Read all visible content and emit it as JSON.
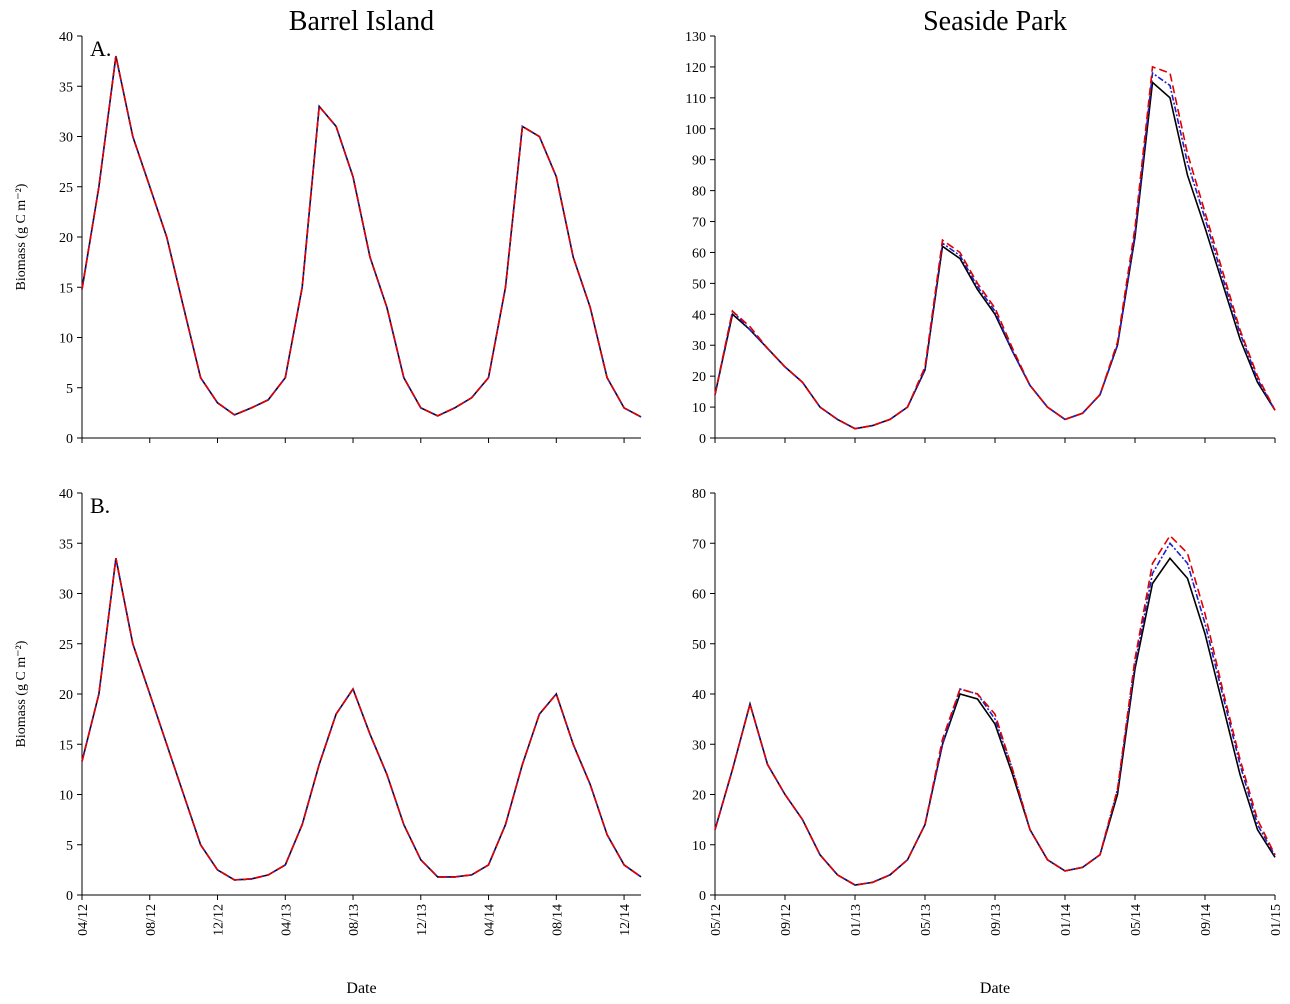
{
  "chart_data": [
    {
      "type": "line",
      "title": "Barrel Island",
      "annotation": "A.",
      "ylabel": "Biomass (g C m⁻²)",
      "x": [
        "04/12",
        "05/12",
        "06/12",
        "07/12",
        "08/12",
        "09/12",
        "10/12",
        "11/12",
        "12/12",
        "01/13",
        "02/13",
        "03/13",
        "04/13",
        "05/13",
        "06/13",
        "07/13",
        "08/13",
        "09/13",
        "10/13",
        "11/13",
        "12/13",
        "01/14",
        "02/14",
        "03/14",
        "04/14",
        "05/14",
        "06/14",
        "07/14",
        "08/14",
        "09/14",
        "10/14",
        "11/14",
        "12/14",
        "01/15"
      ],
      "series": [
        {
          "color": "#000000",
          "line_style": "solid",
          "values": [
            14.8,
            25,
            38,
            30,
            25,
            20,
            13,
            6,
            3.5,
            2.3,
            3,
            3.8,
            6,
            15,
            33,
            31,
            26,
            18,
            13,
            6,
            3,
            2.2,
            3,
            4,
            6,
            15,
            31,
            30,
            26,
            18,
            13,
            6,
            3,
            2.1
          ]
        },
        {
          "color": "#1f1fcc",
          "line_style": "dashdot",
          "values": [
            14.8,
            25,
            38,
            30,
            25,
            20,
            13,
            6,
            3.5,
            2.3,
            3,
            3.8,
            6,
            15,
            33,
            31,
            26,
            18,
            13,
            6,
            3,
            2.2,
            3,
            4,
            6,
            15,
            31,
            30,
            26,
            18,
            13,
            6,
            3,
            2.1
          ]
        },
        {
          "color": "#e00000",
          "line_style": "dashed",
          "values": [
            14.8,
            25,
            38,
            30,
            25,
            20,
            13,
            6,
            3.5,
            2.3,
            3,
            3.8,
            6,
            15,
            33,
            31,
            26,
            18,
            13,
            6,
            3,
            2.2,
            3,
            4,
            6,
            15,
            31,
            30,
            26,
            18,
            13,
            6,
            3,
            2.1
          ]
        }
      ],
      "xlim": [
        "04/12",
        "01/15"
      ],
      "ylim": [
        0,
        40
      ],
      "yticks": [
        0,
        5,
        10,
        15,
        20,
        25,
        30,
        35,
        40
      ],
      "xticks": [
        "04/12",
        "08/12",
        "12/12",
        "04/13",
        "08/13",
        "12/13",
        "04/14",
        "08/14",
        "12/14"
      ],
      "xtick_labels": false
    },
    {
      "type": "line",
      "title": "Seaside Park",
      "x": [
        "05/12",
        "06/12",
        "07/12",
        "08/12",
        "09/12",
        "10/12",
        "11/12",
        "12/12",
        "01/13",
        "02/13",
        "03/13",
        "04/13",
        "05/13",
        "06/13",
        "07/13",
        "08/13",
        "09/13",
        "10/13",
        "11/13",
        "12/13",
        "01/14",
        "02/14",
        "03/14",
        "04/14",
        "05/14",
        "06/14",
        "07/14",
        "08/14",
        "09/14",
        "10/14",
        "11/14",
        "12/14",
        "01/15"
      ],
      "series": [
        {
          "color": "#000000",
          "line_style": "solid",
          "values": [
            14,
            40,
            35,
            29,
            23,
            18,
            10,
            6,
            3,
            4,
            6,
            10,
            22,
            62,
            58,
            48,
            40,
            28,
            17,
            10,
            6,
            8,
            14,
            30,
            65,
            115,
            110,
            85,
            68,
            50,
            32,
            18,
            9
          ]
        },
        {
          "color": "#1f1fcc",
          "line_style": "dashdot",
          "values": [
            14,
            41,
            35,
            29,
            23,
            18,
            10,
            6,
            3,
            4,
            6,
            10,
            22,
            63,
            59,
            49,
            41,
            28,
            17,
            10,
            6,
            8,
            14,
            30,
            66,
            118,
            114,
            89,
            71,
            52,
            34,
            19,
            9
          ]
        },
        {
          "color": "#e00000",
          "line_style": "dashed",
          "values": [
            14,
            41,
            36,
            29,
            23,
            18,
            10,
            6,
            3,
            4,
            6,
            10,
            23,
            64,
            60,
            50,
            42,
            29,
            17,
            10,
            6,
            8,
            14,
            31,
            68,
            120,
            118,
            92,
            73,
            54,
            35,
            20,
            9
          ]
        }
      ],
      "xlim": [
        "05/12",
        "01/15"
      ],
      "ylim": [
        0,
        130
      ],
      "yticks": [
        0,
        10,
        20,
        30,
        40,
        50,
        60,
        70,
        80,
        90,
        100,
        110,
        120,
        130
      ],
      "xticks": [
        "05/12",
        "09/12",
        "01/13",
        "05/13",
        "09/13",
        "01/14",
        "05/14",
        "09/14",
        "01/15"
      ],
      "xtick_labels": false
    },
    {
      "type": "line",
      "annotation": "B.",
      "ylabel": "Biomass (g C m⁻²)",
      "xlabel": "Date",
      "x": [
        "04/12",
        "05/12",
        "06/12",
        "07/12",
        "08/12",
        "09/12",
        "10/12",
        "11/12",
        "12/12",
        "01/13",
        "02/13",
        "03/13",
        "04/13",
        "05/13",
        "06/13",
        "07/13",
        "08/13",
        "09/13",
        "10/13",
        "11/13",
        "12/13",
        "01/14",
        "02/14",
        "03/14",
        "04/14",
        "05/14",
        "06/14",
        "07/14",
        "08/14",
        "09/14",
        "10/14",
        "11/14",
        "12/14",
        "01/15"
      ],
      "series": [
        {
          "color": "#000000",
          "line_style": "solid",
          "values": [
            13.3,
            20,
            33.5,
            25,
            20,
            15,
            10,
            5,
            2.5,
            1.5,
            1.6,
            2,
            3,
            7,
            13,
            18,
            20.5,
            16,
            12,
            7,
            3.5,
            1.8,
            1.8,
            2,
            3,
            7,
            13,
            18,
            20,
            15,
            11,
            6,
            3,
            1.8
          ]
        },
        {
          "color": "#1f1fcc",
          "line_style": "dashdot",
          "values": [
            13.3,
            20,
            33.5,
            25,
            20,
            15,
            10,
            5,
            2.5,
            1.5,
            1.6,
            2,
            3,
            7,
            13,
            18,
            20.5,
            16,
            12,
            7,
            3.5,
            1.8,
            1.8,
            2,
            3,
            7,
            13,
            18,
            20,
            15,
            11,
            6,
            3,
            1.8
          ]
        },
        {
          "color": "#e00000",
          "line_style": "dashed",
          "values": [
            13.3,
            20,
            33.5,
            25,
            20,
            15,
            10,
            5,
            2.5,
            1.5,
            1.6,
            2,
            3,
            7,
            13,
            18,
            20.5,
            16,
            12,
            7,
            3.5,
            1.8,
            1.8,
            2,
            3,
            7,
            13,
            18,
            20,
            15,
            11,
            6,
            3,
            1.8
          ]
        }
      ],
      "xlim": [
        "04/12",
        "01/15"
      ],
      "ylim": [
        0,
        40
      ],
      "yticks": [
        0,
        5,
        10,
        15,
        20,
        25,
        30,
        35,
        40
      ],
      "xticks": [
        "04/12",
        "08/12",
        "12/12",
        "04/13",
        "08/13",
        "12/13",
        "04/14",
        "08/14",
        "12/14"
      ],
      "xtick_labels": true
    },
    {
      "type": "line",
      "xlabel": "Date",
      "x": [
        "05/12",
        "06/12",
        "07/12",
        "08/12",
        "09/12",
        "10/12",
        "11/12",
        "12/12",
        "01/13",
        "02/13",
        "03/13",
        "04/13",
        "05/13",
        "06/13",
        "07/13",
        "08/13",
        "09/13",
        "10/13",
        "11/13",
        "12/13",
        "01/14",
        "02/14",
        "03/14",
        "04/14",
        "05/14",
        "06/14",
        "07/14",
        "08/14",
        "09/14",
        "10/14",
        "11/14",
        "12/14",
        "01/15"
      ],
      "series": [
        {
          "color": "#000000",
          "line_style": "solid",
          "values": [
            13,
            25,
            38,
            26,
            20,
            15,
            8,
            4,
            2,
            2.5,
            4,
            7,
            14,
            30,
            40,
            39,
            34,
            24,
            13,
            7,
            4.8,
            5.5,
            8,
            20,
            45,
            62,
            67,
            63,
            52,
            38,
            24,
            13,
            7.5
          ]
        },
        {
          "color": "#1f1fcc",
          "line_style": "dashdot",
          "values": [
            13,
            25,
            38,
            26,
            20,
            15,
            8,
            4,
            2,
            2.5,
            4,
            7,
            14,
            30,
            41,
            40,
            35,
            25,
            13,
            7,
            4.8,
            5.5,
            8,
            21,
            46,
            64,
            70,
            66,
            54,
            40,
            26,
            14,
            7.8
          ]
        },
        {
          "color": "#e00000",
          "line_style": "dashed",
          "values": [
            13,
            25,
            38,
            26,
            20,
            15,
            8,
            4,
            2,
            2.5,
            4,
            7,
            14,
            31,
            41,
            40,
            36,
            25,
            13,
            7,
            4.8,
            5.5,
            8,
            21,
            47,
            66,
            71.5,
            68,
            56,
            41,
            27,
            15,
            8
          ]
        }
      ],
      "xlim": [
        "05/12",
        "01/15"
      ],
      "ylim": [
        0,
        80
      ],
      "yticks": [
        0,
        10,
        20,
        30,
        40,
        50,
        60,
        70,
        80
      ],
      "xticks": [
        "05/12",
        "09/12",
        "01/13",
        "05/13",
        "09/13",
        "01/14",
        "05/14",
        "09/14",
        "01/15"
      ],
      "xtick_labels": true
    }
  ]
}
